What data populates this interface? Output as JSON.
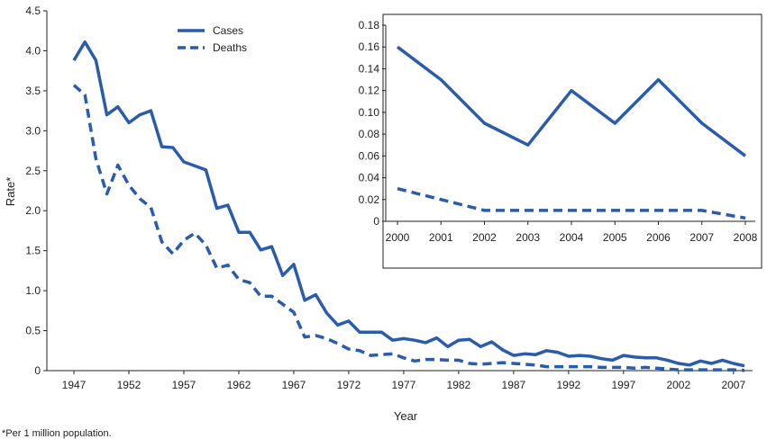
{
  "colors": {
    "series": "#2a5caa",
    "axis": "#222222"
  },
  "footnote": "*Per 1 million population.",
  "chart_data": [
    {
      "type": "line",
      "title": "",
      "xlabel": "Year",
      "ylabel": "Rate*",
      "xlim": [
        1947,
        2008
      ],
      "ylim": [
        0,
        4.5
      ],
      "yticks": [
        0,
        0.5,
        1.0,
        1.5,
        2.0,
        2.5,
        3.0,
        3.5,
        4.0,
        4.5
      ],
      "ytick_labels": [
        "0",
        "0.5",
        "1.0",
        "1.5",
        "2.0",
        "2.5",
        "3.0",
        "3.5",
        "4.0",
        "4.5"
      ],
      "xticks": [
        1947,
        1952,
        1957,
        1962,
        1967,
        1972,
        1977,
        1982,
        1987,
        1992,
        1997,
        2002,
        2007
      ],
      "xtick_labels": [
        "1947",
        "1952",
        "1957",
        "1962",
        "1967",
        "1972",
        "1977",
        "1982",
        "1987",
        "1992",
        "1997",
        "2002",
        "2007"
      ],
      "grid": false,
      "legend": "top-left",
      "x": [
        1947,
        1948,
        1949,
        1950,
        1951,
        1952,
        1953,
        1954,
        1955,
        1956,
        1957,
        1958,
        1959,
        1960,
        1961,
        1962,
        1963,
        1964,
        1965,
        1966,
        1967,
        1968,
        1969,
        1970,
        1971,
        1972,
        1973,
        1974,
        1975,
        1976,
        1977,
        1978,
        1979,
        1980,
        1981,
        1982,
        1983,
        1984,
        1985,
        1986,
        1987,
        1988,
        1989,
        1990,
        1991,
        1992,
        1993,
        1994,
        1995,
        1996,
        1997,
        1998,
        1999,
        2000,
        2001,
        2002,
        2003,
        2004,
        2005,
        2006,
        2007,
        2008
      ],
      "series": [
        {
          "name": "Cases",
          "style": "solid",
          "values": [
            3.88,
            4.11,
            3.88,
            3.2,
            3.3,
            3.1,
            3.2,
            3.25,
            2.8,
            2.79,
            2.61,
            2.56,
            2.51,
            2.03,
            2.07,
            1.73,
            1.73,
            1.51,
            1.55,
            1.19,
            1.33,
            0.88,
            0.95,
            0.72,
            0.57,
            0.62,
            0.48,
            0.48,
            0.48,
            0.38,
            0.4,
            0.38,
            0.35,
            0.41,
            0.3,
            0.38,
            0.39,
            0.3,
            0.36,
            0.26,
            0.19,
            0.21,
            0.2,
            0.25,
            0.23,
            0.18,
            0.19,
            0.18,
            0.15,
            0.13,
            0.19,
            0.17,
            0.16,
            0.16,
            0.13,
            0.09,
            0.07,
            0.12,
            0.09,
            0.13,
            0.09,
            0.06
          ]
        },
        {
          "name": "Deaths",
          "style": "dashed",
          "values": [
            3.57,
            3.45,
            2.65,
            2.21,
            2.57,
            2.32,
            2.15,
            2.04,
            1.61,
            1.46,
            1.63,
            1.72,
            1.57,
            1.28,
            1.32,
            1.14,
            1.1,
            0.93,
            0.93,
            0.83,
            0.73,
            0.42,
            0.44,
            0.4,
            0.34,
            0.27,
            0.25,
            0.19,
            0.2,
            0.21,
            0.16,
            0.12,
            0.14,
            0.14,
            0.13,
            0.13,
            0.09,
            0.08,
            0.09,
            0.1,
            0.09,
            0.08,
            0.07,
            0.05,
            0.05,
            0.05,
            0.05,
            0.05,
            0.04,
            0.04,
            0.04,
            0.03,
            0.04,
            0.03,
            0.02,
            0.01,
            0.01,
            0.01,
            0.01,
            0.01,
            0.01,
            0.003
          ]
        }
      ]
    },
    {
      "type": "line",
      "title": "",
      "xlabel": "",
      "ylabel": "",
      "xlim": [
        2000,
        2008
      ],
      "ylim": [
        0,
        0.18
      ],
      "yticks": [
        0,
        0.02,
        0.04,
        0.06,
        0.08,
        0.1,
        0.12,
        0.14,
        0.16,
        0.18
      ],
      "ytick_labels": [
        "0",
        "0.02",
        "0.04",
        "0.06",
        "0.08",
        "0.10",
        "0.12",
        "0.14",
        "0.16",
        "0.18"
      ],
      "xticks": [
        2000,
        2001,
        2002,
        2003,
        2004,
        2005,
        2006,
        2007,
        2008
      ],
      "xtick_labels": [
        "2000",
        "2001",
        "2002",
        "2003",
        "2004",
        "2005",
        "2006",
        "2007",
        "2008"
      ],
      "grid": false,
      "x": [
        2000,
        2001,
        2002,
        2003,
        2004,
        2005,
        2006,
        2007,
        2008
      ],
      "series": [
        {
          "name": "Cases",
          "style": "solid",
          "values": [
            0.16,
            0.13,
            0.09,
            0.07,
            0.12,
            0.09,
            0.13,
            0.09,
            0.06
          ]
        },
        {
          "name": "Deaths",
          "style": "dashed",
          "values": [
            0.03,
            0.02,
            0.01,
            0.01,
            0.01,
            0.01,
            0.01,
            0.01,
            0.003
          ]
        }
      ]
    }
  ]
}
